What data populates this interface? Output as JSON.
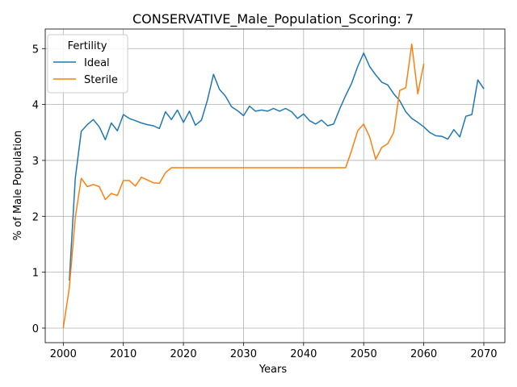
{
  "chart_data": {
    "type": "line",
    "title": "CONSERVATIVE_Male_Population_Scoring: 7",
    "xlabel": "Years",
    "ylabel": "% of Male Population",
    "xlim": [
      1997,
      2073.5
    ],
    "ylim": [
      -0.26,
      5.35
    ],
    "xticks": [
      2000,
      2010,
      2020,
      2030,
      2040,
      2050,
      2060,
      2070
    ],
    "yticks": [
      0,
      1,
      2,
      3,
      4,
      5
    ],
    "grid": true,
    "legend": {
      "title": "Fertility",
      "position": "top-left"
    },
    "series": [
      {
        "name": "Ideal",
        "color": "#1f77b4",
        "x": [
          2001,
          2002,
          2003,
          2004,
          2005,
          2006,
          2007,
          2008,
          2009,
          2010,
          2011,
          2012,
          2013,
          2014,
          2015,
          2016,
          2017,
          2018,
          2019,
          2020,
          2021,
          2022,
          2023,
          2024,
          2025,
          2026,
          2027,
          2028,
          2029,
          2030,
          2031,
          2032,
          2033,
          2034,
          2035,
          2036,
          2037,
          2038,
          2039,
          2040,
          2041,
          2042,
          2043,
          2044,
          2045,
          2046,
          2047,
          2048,
          2049,
          2050,
          2051,
          2052,
          2053,
          2054,
          2055,
          2056,
          2057,
          2058,
          2059,
          2060,
          2061,
          2062,
          2063,
          2064,
          2065,
          2066,
          2067,
          2068,
          2069,
          2070
        ],
        "values": [
          0.85,
          2.68,
          3.52,
          3.64,
          3.73,
          3.6,
          3.37,
          3.67,
          3.53,
          3.82,
          3.75,
          3.71,
          3.67,
          3.64,
          3.62,
          3.57,
          3.87,
          3.73,
          3.9,
          3.68,
          3.88,
          3.63,
          3.72,
          4.08,
          4.54,
          4.27,
          4.15,
          3.96,
          3.89,
          3.8,
          3.97,
          3.88,
          3.9,
          3.88,
          3.93,
          3.88,
          3.93,
          3.87,
          3.75,
          3.83,
          3.71,
          3.65,
          3.72,
          3.62,
          3.65,
          3.92,
          4.16,
          4.38,
          4.68,
          4.92,
          4.68,
          4.53,
          4.4,
          4.35,
          4.19,
          4.07,
          3.87,
          3.75,
          3.68,
          3.6,
          3.5,
          3.44,
          3.43,
          3.38,
          3.55,
          3.42,
          3.79,
          3.82,
          4.44,
          4.28
        ]
      },
      {
        "name": "Sterile",
        "color": "#ff7f0e",
        "x": [
          2000,
          2001,
          2002,
          2003,
          2004,
          2005,
          2006,
          2007,
          2008,
          2009,
          2010,
          2011,
          2012,
          2013,
          2014,
          2015,
          2016,
          2017,
          2018,
          2019,
          2020,
          2021,
          2022,
          2023,
          2024,
          2025,
          2026,
          2027,
          2028,
          2029,
          2030,
          2031,
          2032,
          2033,
          2034,
          2035,
          2036,
          2037,
          2038,
          2039,
          2040,
          2041,
          2042,
          2043,
          2044,
          2045,
          2046,
          2047,
          2048,
          2049,
          2050,
          2051,
          2052,
          2053,
          2054,
          2055,
          2056,
          2057,
          2058,
          2059,
          2060
        ],
        "values": [
          0.0,
          0.72,
          1.98,
          2.68,
          2.53,
          2.57,
          2.53,
          2.3,
          2.41,
          2.37,
          2.64,
          2.64,
          2.54,
          2.7,
          2.65,
          2.6,
          2.59,
          2.78,
          2.87,
          2.87,
          2.87,
          2.87,
          2.87,
          2.87,
          2.87,
          2.87,
          2.87,
          2.87,
          2.87,
          2.87,
          2.87,
          2.87,
          2.87,
          2.87,
          2.87,
          2.87,
          2.87,
          2.87,
          2.87,
          2.87,
          2.87,
          2.87,
          2.87,
          2.87,
          2.87,
          2.87,
          2.87,
          2.87,
          3.18,
          3.53,
          3.65,
          3.42,
          3.02,
          3.23,
          3.3,
          3.5,
          4.25,
          4.3,
          5.08,
          4.19,
          4.73
        ]
      }
    ]
  }
}
